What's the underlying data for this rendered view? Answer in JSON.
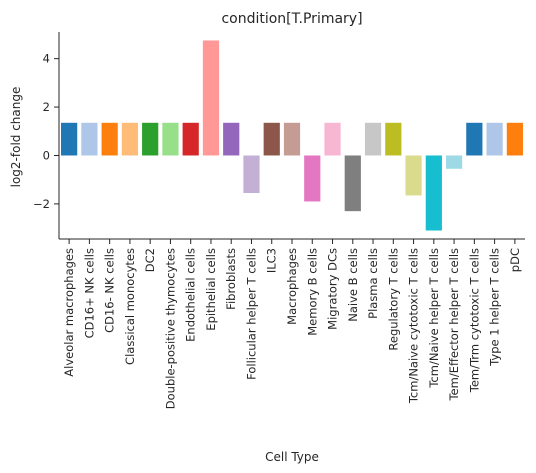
{
  "chart_data": {
    "type": "bar",
    "title": "condition[T.Primary]",
    "xlabel": "Cell Type",
    "ylabel": "log2-fold change",
    "ylim": [
      -3.45,
      5.1
    ],
    "yticks": [
      -2,
      0,
      2,
      4
    ],
    "grid": false,
    "legend": "none",
    "categories": [
      "Alveolar macrophages",
      "CD16+ NK cells",
      "CD16- NK cells",
      "Classical monocytes",
      "DC2",
      "Double-positive thymocytes",
      "Endothelial cells",
      "Epithelial cells",
      "Fibroblasts",
      "Follicular helper T cells",
      "ILC3",
      "Macrophages",
      "Memory B cells",
      "Migratory DCs",
      "Naive B cells",
      "Plasma cells",
      "Regulatory T cells",
      "Tcm/Naive cytotoxic T cells",
      "Tcm/Naive helper T cells",
      "Tem/Effector helper T cells",
      "Tem/Trm cytotoxic T cells",
      "Type 1 helper T cells",
      "pDC"
    ],
    "values": [
      1.35,
      1.35,
      1.35,
      1.35,
      1.35,
      1.35,
      1.35,
      4.75,
      1.35,
      -1.55,
      1.35,
      1.35,
      -1.9,
      1.35,
      -2.3,
      1.35,
      1.35,
      -1.65,
      -3.1,
      -0.55,
      1.35,
      1.35,
      1.35
    ],
    "colors": [
      "#1f77b4",
      "#aec7e8",
      "#ff7f0e",
      "#ffbb78",
      "#2ca02c",
      "#98df8a",
      "#d62728",
      "#ff9896",
      "#9467bd",
      "#c5b0d5",
      "#8c564b",
      "#c49c94",
      "#e377c2",
      "#f7b6d2",
      "#7f7f7f",
      "#c7c7c7",
      "#bcbd22",
      "#dbdb8d",
      "#17becf",
      "#9edae5",
      "#1f77b4",
      "#aec7e8",
      "#ff7f0e"
    ]
  }
}
